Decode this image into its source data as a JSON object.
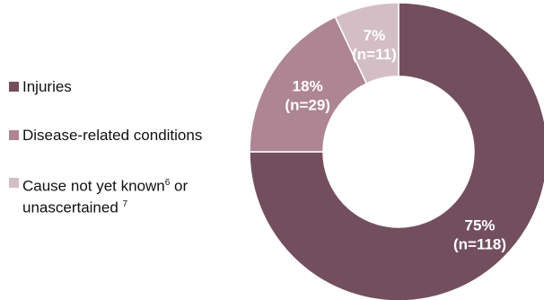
{
  "chart_data": {
    "type": "pie",
    "style": "donut",
    "start_angle_deg": 0,
    "direction": "clockwise",
    "legend_position": "left",
    "slices": [
      {
        "name": "Injuries",
        "percent": 75,
        "n": 118,
        "pct_label": "75%",
        "n_label": "(n=118)",
        "color": "#734f5e"
      },
      {
        "name": "Disease-related conditions",
        "percent": 18,
        "n": 29,
        "pct_label": "18%",
        "n_label": "(n=29)",
        "color": "#ae8592"
      },
      {
        "name": "Cause not yet known",
        "name_sup": "6",
        "name_tail": " or",
        "name_line2": "unascertained ",
        "name_line2_sup": "7",
        "percent": 7,
        "n": 11,
        "pct_label": "7%",
        "n_label": "(n=11)",
        "color": "#d3bec6"
      }
    ]
  }
}
